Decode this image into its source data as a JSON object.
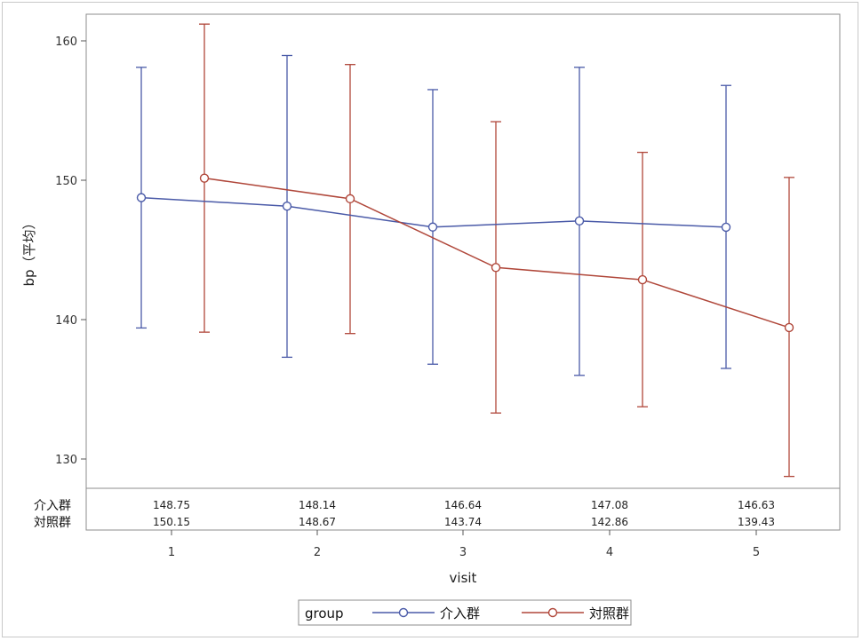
{
  "chart_data": {
    "type": "line",
    "ylabel": "bp（平均）",
    "xlabel": "visit",
    "categories": [
      "1",
      "2",
      "3",
      "4",
      "5"
    ],
    "ylim": [
      128,
      162
    ],
    "yticks": [
      130,
      140,
      150,
      160
    ],
    "grid": false,
    "legend": {
      "title": "group",
      "placement": "bottom"
    },
    "series": [
      {
        "name": "介入群",
        "color": "#4a5aa8",
        "marker": "circle",
        "values": [
          148.75,
          148.14,
          146.64,
          147.08,
          146.63
        ],
        "err_low": [
          139.4,
          137.3,
          136.8,
          136.0,
          136.5
        ],
        "err_high": [
          158.1,
          158.95,
          156.5,
          158.1,
          156.8
        ]
      },
      {
        "name": "対照群",
        "color": "#b0473a",
        "marker": "circle",
        "values": [
          150.15,
          148.67,
          143.74,
          142.86,
          139.43
        ],
        "err_low": [
          139.1,
          139.0,
          133.3,
          133.75,
          128.75
        ],
        "err_high": [
          161.2,
          158.3,
          154.2,
          152.0,
          150.2
        ]
      }
    ],
    "table": {
      "rows": [
        {
          "label": "介入群",
          "values": [
            "148.75",
            "148.14",
            "146.64",
            "147.08",
            "146.63"
          ]
        },
        {
          "label": "対照群",
          "values": [
            "150.15",
            "148.67",
            "143.74",
            "142.86",
            "139.43"
          ]
        }
      ]
    }
  }
}
